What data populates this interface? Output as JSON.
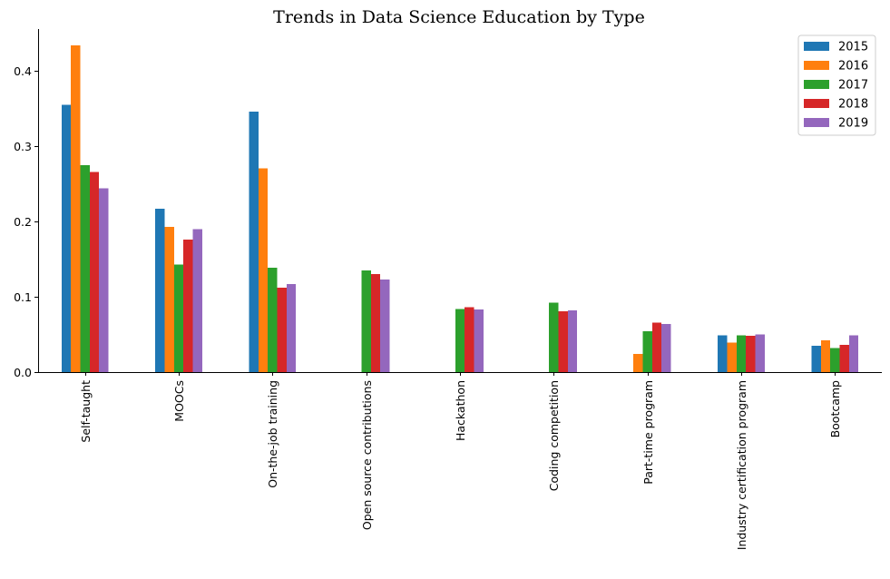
{
  "chart_data": {
    "type": "bar",
    "title": "Trends in Data Science Education by Type",
    "xlabel": "",
    "ylabel": "",
    "categories": [
      "Self-taught",
      "MOOCs",
      "On-the-job training",
      "Open source contributions",
      "Hackathon",
      "Coding competition",
      "Part-time program",
      "Industry certification program",
      "Bootcamp"
    ],
    "series": [
      {
        "name": "2015",
        "color": "#1f77b4",
        "values": [
          0.355,
          0.217,
          0.346,
          null,
          null,
          null,
          null,
          0.049,
          0.035
        ]
      },
      {
        "name": "2016",
        "color": "#ff7f0e",
        "values": [
          0.434,
          0.193,
          0.271,
          null,
          null,
          null,
          0.024,
          0.039,
          0.042
        ]
      },
      {
        "name": "2017",
        "color": "#2ca02c",
        "values": [
          0.275,
          0.143,
          0.139,
          0.135,
          0.084,
          0.092,
          0.054,
          0.049,
          0.032
        ]
      },
      {
        "name": "2018",
        "color": "#d62728",
        "values": [
          0.266,
          0.176,
          0.112,
          0.13,
          0.086,
          0.081,
          0.066,
          0.048,
          0.036
        ]
      },
      {
        "name": "2019",
        "color": "#9467bd",
        "values": [
          0.244,
          0.19,
          0.117,
          0.123,
          0.083,
          0.082,
          0.064,
          0.05,
          0.049
        ]
      }
    ],
    "yticks": [
      "0.0",
      "0.1",
      "0.2",
      "0.3",
      "0.4"
    ],
    "ylim": [
      0,
      0.456
    ],
    "grid": false,
    "legend_position": "top-right"
  }
}
